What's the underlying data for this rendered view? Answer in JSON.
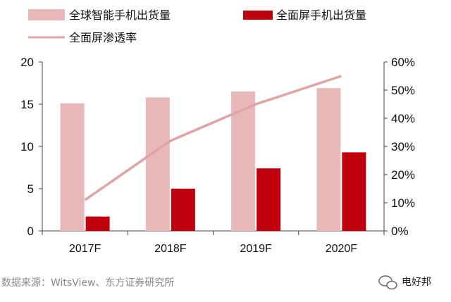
{
  "chart_data": {
    "type": "bar",
    "categories": [
      "2017F",
      "2018F",
      "2019F",
      "2020F"
    ],
    "series": [
      {
        "name": "全球智能手机出货量",
        "type": "bar",
        "axis": "left",
        "values": [
          15.1,
          15.8,
          16.5,
          16.9
        ],
        "color": "#e8b7b7"
      },
      {
        "name": "全面屏手机出货量",
        "type": "bar",
        "axis": "left",
        "values": [
          1.7,
          5.0,
          7.4,
          9.3
        ],
        "color": "#c0000c"
      },
      {
        "name": "全面屏渗透率",
        "type": "line",
        "axis": "right",
        "values": [
          0.11,
          0.32,
          0.45,
          0.55
        ],
        "color": "#e2a3a6"
      }
    ],
    "yleft": {
      "min": 0,
      "max": 20,
      "ticks": [
        0,
        5,
        10,
        15,
        20
      ],
      "tick_labels": [
        "0",
        "5",
        "10",
        "15",
        "20"
      ]
    },
    "yright": {
      "min": 0,
      "max": 0.6,
      "ticks": [
        0,
        0.1,
        0.2,
        0.3,
        0.4,
        0.5,
        0.6
      ],
      "tick_labels": [
        "0%",
        "10%",
        "20%",
        "30%",
        "40%",
        "50%",
        "60%"
      ]
    },
    "legend_position": "top-left",
    "grid": false
  },
  "source": "数据来源：WitsView、东方证券研究所",
  "watermark": "电好邦"
}
